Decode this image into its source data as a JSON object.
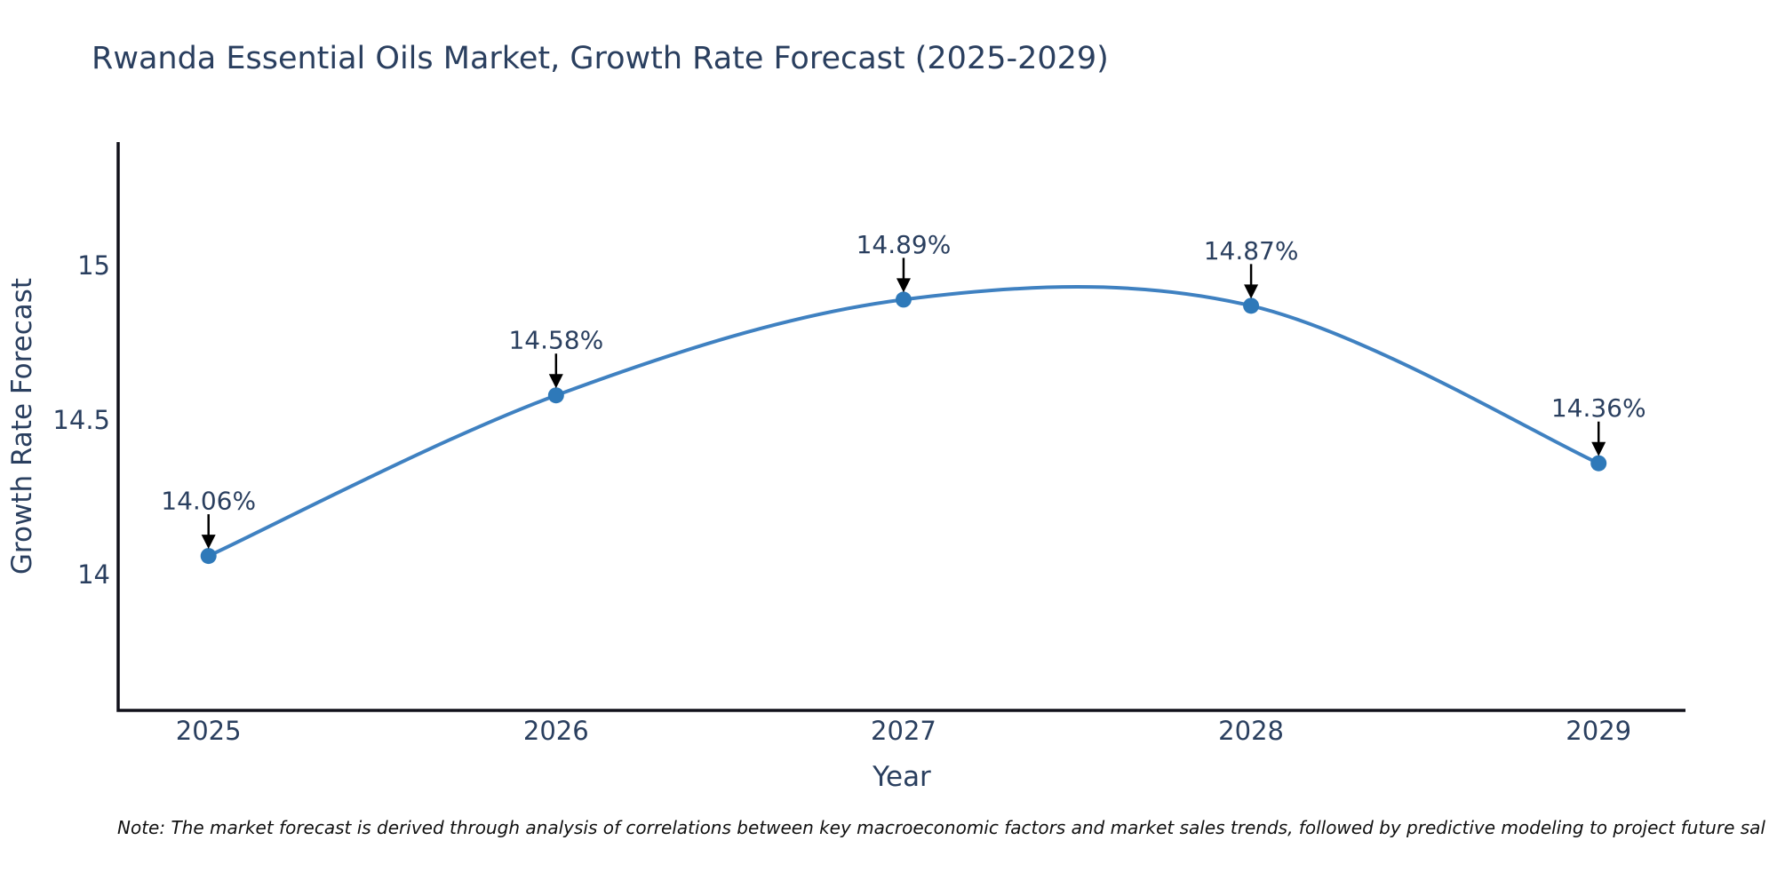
{
  "note": "Note: The market forecast is derived through analysis of correlations between key macroeconomic factors and market sales trends, followed by predictive modeling to project future sal",
  "chart_data": {
    "type": "line",
    "title": "Rwanda Essential Oils Market, Growth Rate Forecast (2025-2029)",
    "xlabel": "Year",
    "ylabel": "Growth Rate Forecast",
    "x": [
      2025,
      2026,
      2027,
      2028,
      2029
    ],
    "values": [
      14.06,
      14.58,
      14.89,
      14.87,
      14.36
    ],
    "series": [
      {
        "name": "Growth Rate Forecast",
        "values": [
          14.06,
          14.58,
          14.89,
          14.87,
          14.36
        ]
      }
    ],
    "point_labels": [
      "14.06%",
      "14.58%",
      "14.89%",
      "14.87%",
      "14.36%"
    ],
    "xticks": {
      "values": [
        2025,
        2026,
        2027,
        2028,
        2029
      ],
      "labels": [
        "2025",
        "2026",
        "2027",
        "2028",
        "2029"
      ]
    },
    "yticks": {
      "values": [
        14,
        14.5,
        15
      ],
      "labels": [
        "14",
        "14.5",
        "15"
      ]
    },
    "xlim": [
      2024.74,
      2029.25
    ],
    "ylim": [
      13.56,
      15.4
    ],
    "grid": false,
    "legend": "none",
    "line_shape": "spline",
    "annotation_arrows": true,
    "colors": {
      "line": "#3f81c1",
      "marker": "#2e79b9",
      "arrow": "#000000",
      "axis": "#11111a",
      "text": "#2a3f5f",
      "background": "#ffffff"
    }
  }
}
